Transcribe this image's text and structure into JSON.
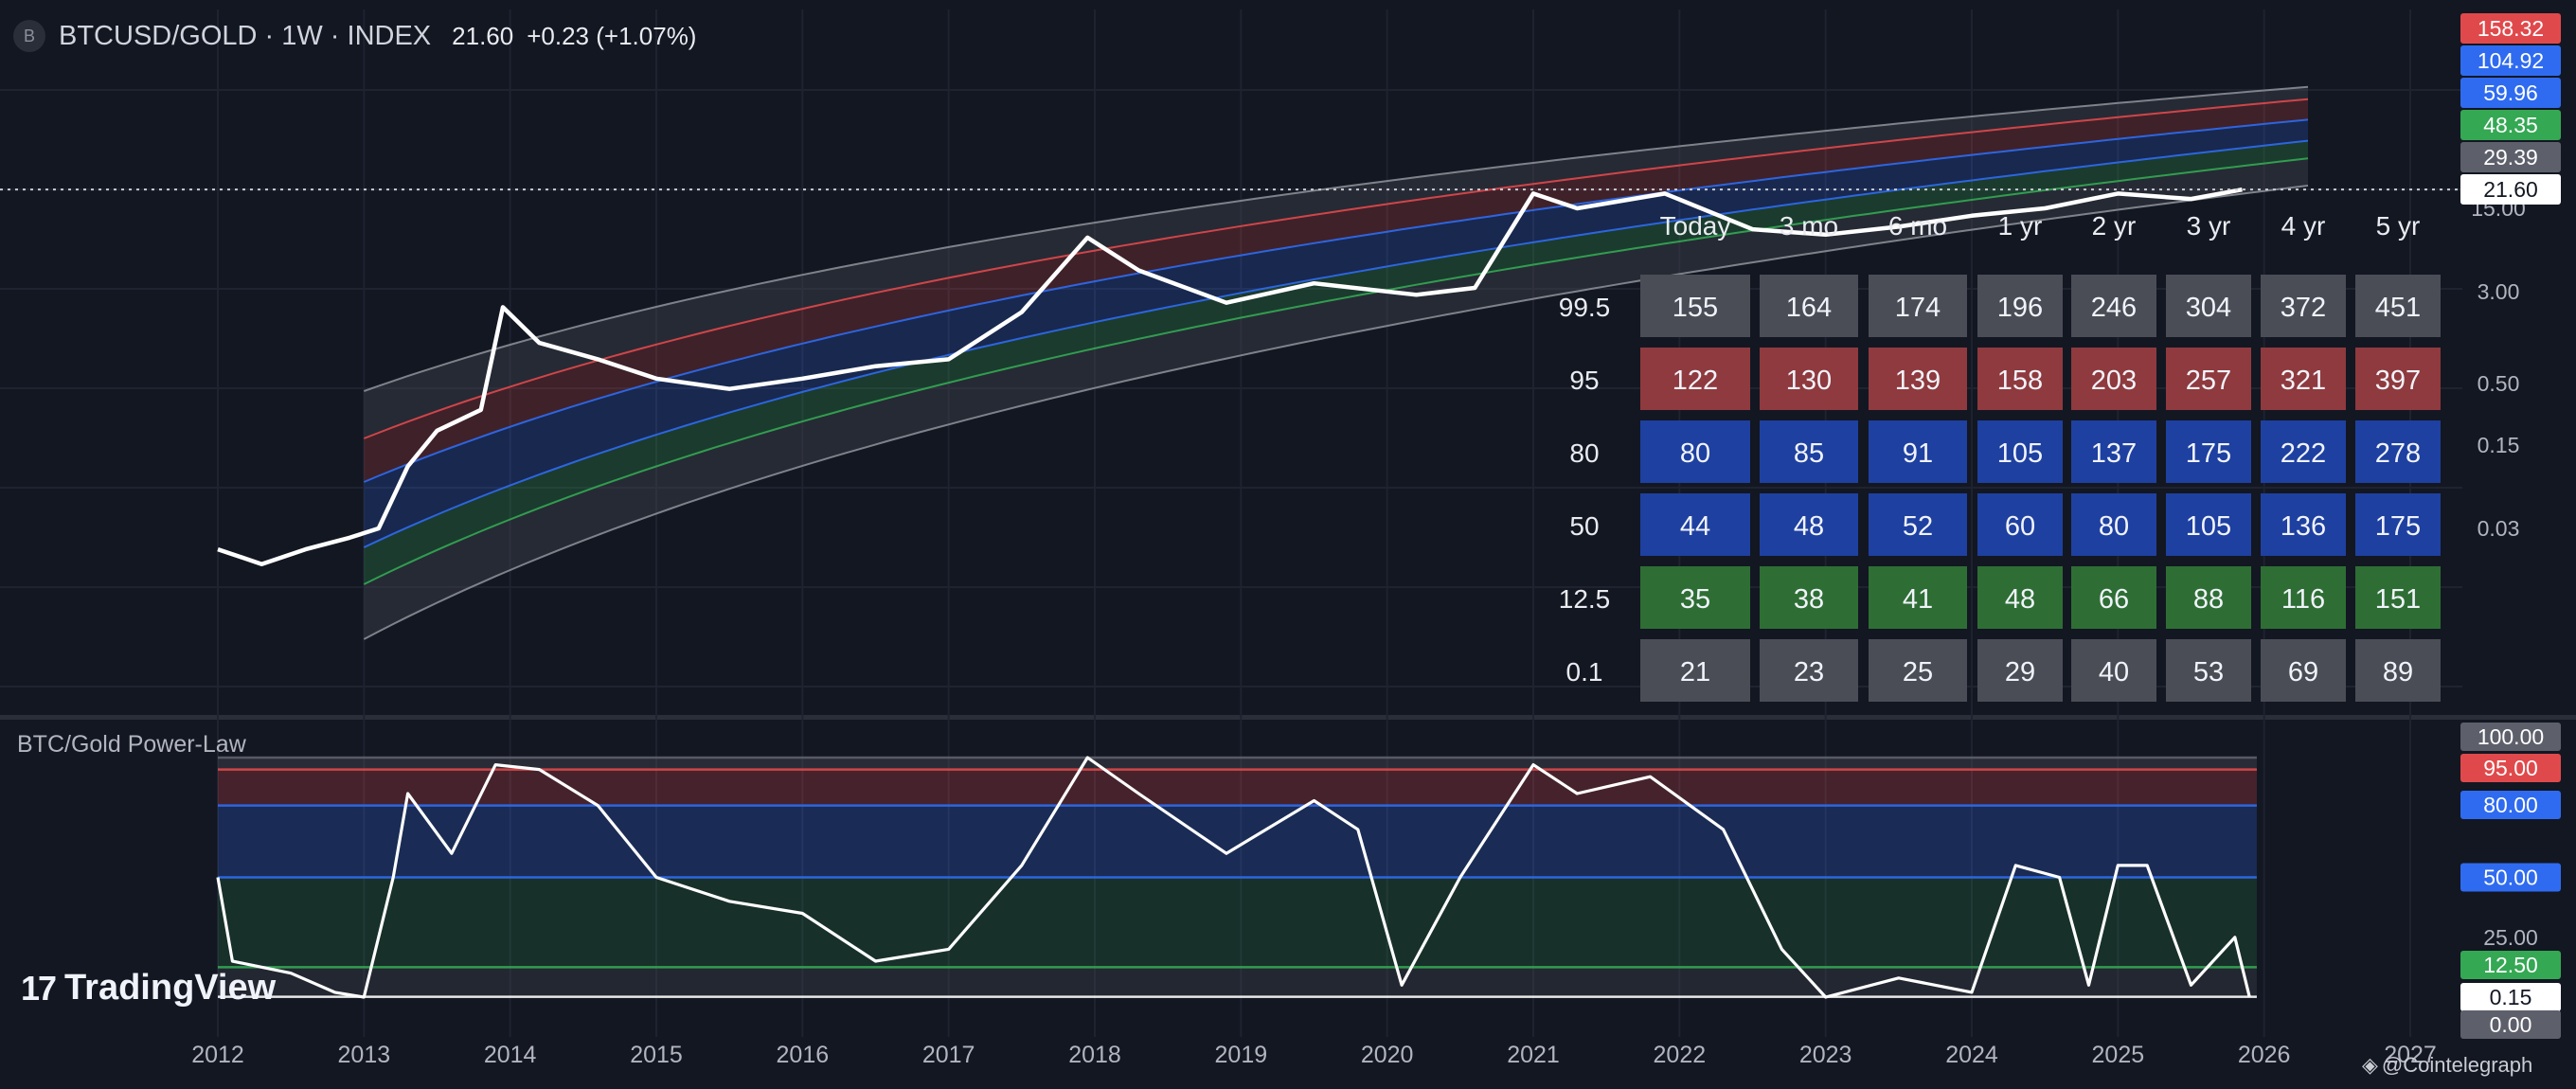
{
  "header": {
    "logo_letter": "B",
    "symbol": "BTCUSD/GOLD · 1W · INDEX",
    "price": "21.60",
    "change": "+0.23 (+1.07%)"
  },
  "oscillator_title": "BTC/Gold Power-Law",
  "brand": {
    "mark": "17",
    "name": "TradingView"
  },
  "credit": {
    "glyph": "◈",
    "text": "@Cointelegraph"
  },
  "colors": {
    "background": "#131722",
    "gray_band": "#3a3d45",
    "red": "#e0494b",
    "blue": "#2f6bf0",
    "green": "#34a853",
    "table_gray": "#4a4d55",
    "table_red": "#8f3a3e",
    "table_blue": "#1e40a0",
    "table_green": "#2e6e34"
  },
  "chart_data": [
    {
      "type": "line",
      "title": "BTCUSD/GOLD",
      "x_ticks": [
        "2012",
        "2013",
        "2014",
        "2015",
        "2016",
        "2017",
        "2018",
        "2019",
        "2020",
        "2021",
        "2022",
        "2023",
        "2024",
        "2025",
        "2026",
        "2027"
      ],
      "y_scale": "log",
      "y_axis_labels": [
        "15.00",
        "3.00",
        "0.50",
        "0.15",
        "0.03"
      ],
      "price_labels": [
        {
          "value": "158.32",
          "color": "#e0494b"
        },
        {
          "value": "104.92",
          "color": "#2f6bf0"
        },
        {
          "value": "59.96",
          "color": "#2f6bf0"
        },
        {
          "value": "48.35",
          "color": "#34a853"
        },
        {
          "value": "29.39",
          "color": "#5d606b"
        },
        {
          "value": "21.60",
          "color": "#ffffff"
        }
      ],
      "percentile_bands": [
        99.5,
        95,
        80,
        50,
        12.5,
        0.1
      ],
      "series": [
        {
          "points": [
            [
              2012.0,
              0.02
            ],
            [
              2012.3,
              0.015
            ],
            [
              2012.6,
              0.02
            ],
            [
              2012.9,
              0.025
            ],
            [
              2013.1,
              0.03
            ],
            [
              2013.3,
              0.1
            ],
            [
              2013.5,
              0.2
            ],
            [
              2013.8,
              0.3
            ],
            [
              2013.95,
              2.2
            ],
            [
              2014.2,
              1.1
            ],
            [
              2014.6,
              0.8
            ],
            [
              2015.0,
              0.55
            ],
            [
              2015.5,
              0.45
            ],
            [
              2016.0,
              0.55
            ],
            [
              2016.5,
              0.7
            ],
            [
              2017.0,
              0.8
            ],
            [
              2017.5,
              2.0
            ],
            [
              2017.95,
              8.5
            ],
            [
              2018.3,
              4.5
            ],
            [
              2018.9,
              2.4
            ],
            [
              2019.5,
              3.5
            ],
            [
              2020.2,
              2.8
            ],
            [
              2020.6,
              3.2
            ],
            [
              2021.0,
              20.0
            ],
            [
              2021.3,
              15.0
            ],
            [
              2021.9,
              20.0
            ],
            [
              2022.5,
              10.0
            ],
            [
              2023.0,
              9.0
            ],
            [
              2023.5,
              10.5
            ],
            [
              2024.0,
              13.0
            ],
            [
              2024.5,
              15.0
            ],
            [
              2025.0,
              20.0
            ],
            [
              2025.5,
              18.0
            ],
            [
              2025.85,
              21.6
            ]
          ]
        }
      ]
    },
    {
      "type": "table",
      "columns": [
        "Today",
        "3 mo",
        "6 mo",
        "1 yr",
        "2 yr",
        "3 yr",
        "4 yr",
        "5 yr"
      ],
      "rows": [
        {
          "label": "99.5",
          "values": [
            "155",
            "164",
            "174",
            "196",
            "246",
            "304",
            "372",
            "451"
          ],
          "color": "gray"
        },
        {
          "label": "95",
          "values": [
            "122",
            "130",
            "139",
            "158",
            "203",
            "257",
            "321",
            "397"
          ],
          "color": "red"
        },
        {
          "label": "80",
          "values": [
            "80",
            "85",
            "91",
            "105",
            "137",
            "175",
            "222",
            "278"
          ],
          "color": "blue"
        },
        {
          "label": "50",
          "values": [
            "44",
            "48",
            "52",
            "60",
            "80",
            "105",
            "136",
            "175"
          ],
          "color": "blue"
        },
        {
          "label": "12.5",
          "values": [
            "35",
            "38",
            "41",
            "48",
            "66",
            "88",
            "116",
            "151"
          ],
          "color": "green"
        },
        {
          "label": "0.1",
          "values": [
            "21",
            "23",
            "25",
            "29",
            "40",
            "53",
            "69",
            "89"
          ],
          "color": "gray"
        }
      ]
    },
    {
      "type": "line",
      "title": "BTC/Gold Power-Law",
      "ylim": [
        0,
        100
      ],
      "y_axis_labels": [
        "100.00",
        "95.00",
        "80.00",
        "50.00",
        "25.00",
        "12.50",
        "0.15",
        "0.00"
      ],
      "levels": [
        {
          "value": 100,
          "color": "#5d606b"
        },
        {
          "value": 95,
          "color": "#e0494b"
        },
        {
          "value": 80,
          "color": "#2f6bf0"
        },
        {
          "value": 50,
          "color": "#2f6bf0"
        },
        {
          "value": 12.5,
          "color": "#34a853"
        },
        {
          "value": 0.15,
          "color": "#ffffff"
        }
      ],
      "series": [
        {
          "points": [
            [
              2012.0,
              50
            ],
            [
              2012.1,
              15
            ],
            [
              2012.5,
              10
            ],
            [
              2012.8,
              2
            ],
            [
              2013.0,
              0
            ],
            [
              2013.2,
              50
            ],
            [
              2013.3,
              85
            ],
            [
              2013.6,
              60
            ],
            [
              2013.9,
              97
            ],
            [
              2014.2,
              95
            ],
            [
              2014.6,
              80
            ],
            [
              2015.0,
              50
            ],
            [
              2015.5,
              40
            ],
            [
              2016.0,
              35
            ],
            [
              2016.5,
              15
            ],
            [
              2017.0,
              20
            ],
            [
              2017.5,
              55
            ],
            [
              2017.95,
              100
            ],
            [
              2018.3,
              85
            ],
            [
              2018.9,
              60
            ],
            [
              2019.5,
              82
            ],
            [
              2019.8,
              70
            ],
            [
              2020.1,
              5
            ],
            [
              2020.5,
              50
            ],
            [
              2021.0,
              97
            ],
            [
              2021.3,
              85
            ],
            [
              2021.8,
              92
            ],
            [
              2022.3,
              70
            ],
            [
              2022.7,
              20
            ],
            [
              2023.0,
              0
            ],
            [
              2023.5,
              8
            ],
            [
              2024.0,
              2
            ],
            [
              2024.3,
              55
            ],
            [
              2024.6,
              50
            ],
            [
              2024.8,
              5
            ],
            [
              2025.0,
              55
            ],
            [
              2025.2,
              55
            ],
            [
              2025.5,
              5
            ],
            [
              2025.8,
              25
            ],
            [
              2025.9,
              0.15
            ]
          ]
        }
      ]
    }
  ]
}
